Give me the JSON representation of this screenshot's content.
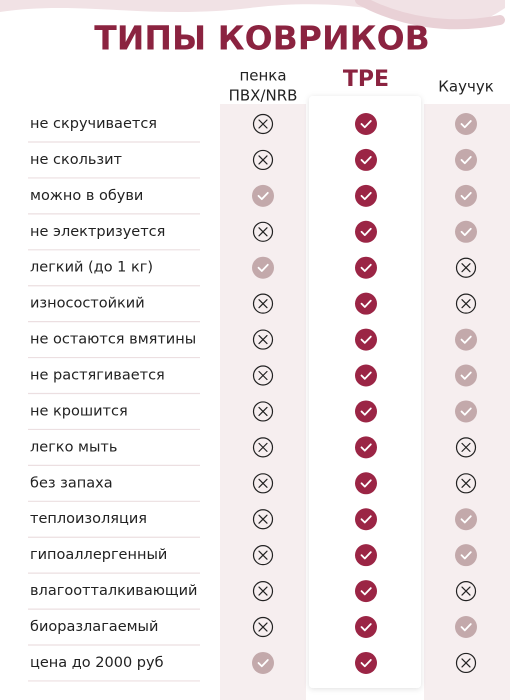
{
  "title": "ТИПЫ КОВРИКОВ",
  "columns": [
    [
      "пенка",
      "ПВХ/NRB"
    ],
    [
      "TPE"
    ],
    [
      "Каучук"
    ]
  ],
  "rows": [
    {
      "label": "не скручивается",
      "values": [
        false,
        true,
        true
      ]
    },
    {
      "label": "не скользит",
      "values": [
        false,
        true,
        true
      ]
    },
    {
      "label": "можно в обуви",
      "values": [
        true,
        true,
        true
      ]
    },
    {
      "label": "не электризуется",
      "values": [
        false,
        true,
        true
      ]
    },
    {
      "label": "легкий (до 1 кг)",
      "values": [
        true,
        true,
        false
      ]
    },
    {
      "label": "износостойкий",
      "values": [
        false,
        true,
        false
      ]
    },
    {
      "label": "не остаются вмятины",
      "values": [
        false,
        true,
        true
      ]
    },
    {
      "label": "не растягивается",
      "values": [
        false,
        true,
        true
      ]
    },
    {
      "label": "не крошится",
      "values": [
        false,
        true,
        true
      ]
    },
    {
      "label": "легко мыть",
      "values": [
        false,
        true,
        false
      ]
    },
    {
      "label": "без запаха",
      "values": [
        false,
        true,
        false
      ]
    },
    {
      "label": "теплоизоляция",
      "values": [
        false,
        true,
        true
      ]
    },
    {
      "label": "гипоаллергенный",
      "values": [
        false,
        true,
        true
      ]
    },
    {
      "label": "влагоотталкивающий",
      "values": [
        false,
        true,
        false
      ]
    },
    {
      "label": "биоразлагаемый",
      "values": [
        false,
        true,
        true
      ]
    },
    {
      "label": "цена до 2000 руб",
      "values": [
        true,
        true,
        false
      ]
    }
  ]
}
